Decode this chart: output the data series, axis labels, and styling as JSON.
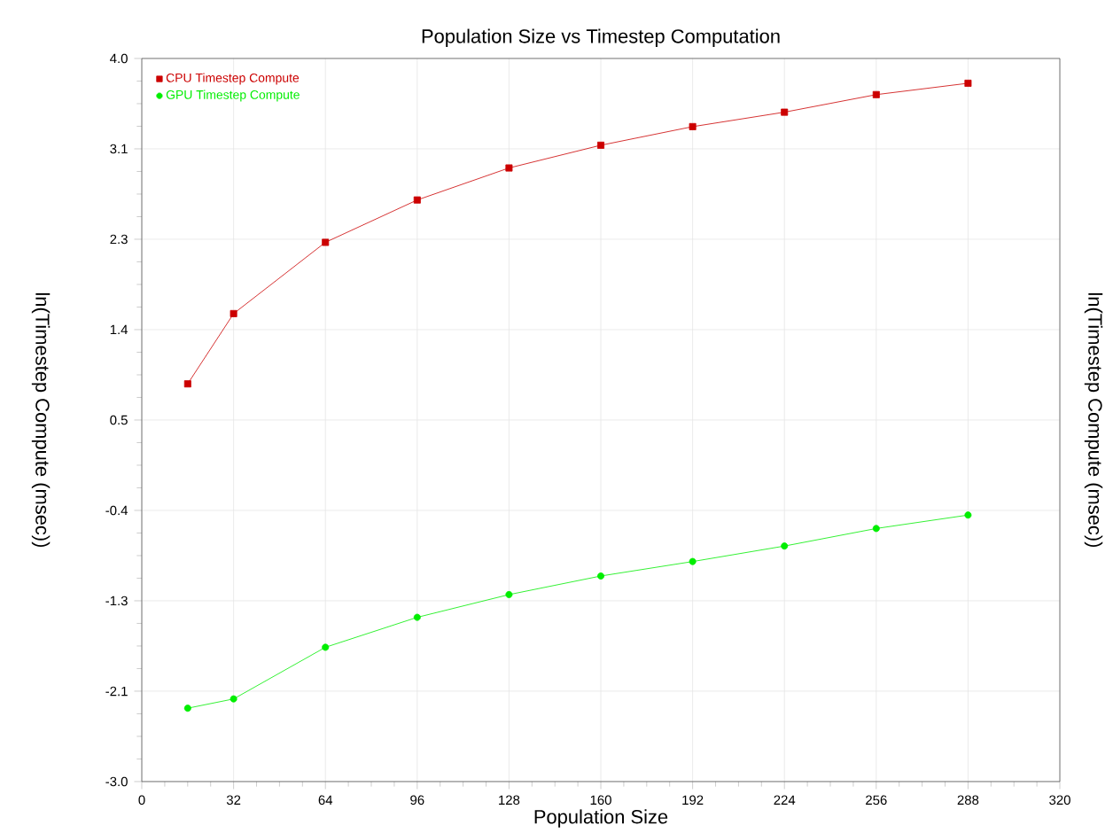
{
  "chart_data": {
    "type": "line",
    "title": "Population Size vs Timestep Computation",
    "xlabel": "Population Size",
    "ylabel": "ln(Timestep Compute (msec))",
    "y2label": "ln(Timestep Compute (msec))",
    "x": [
      16,
      32,
      64,
      96,
      128,
      160,
      192,
      224,
      256,
      288
    ],
    "series": [
      {
        "name": "CPU Timestep Compute",
        "color": "#cc0000",
        "marker": "square",
        "values": [
          0.85,
          1.53,
          2.22,
          2.63,
          2.94,
          3.16,
          3.34,
          3.48,
          3.65,
          3.76
        ]
      },
      {
        "name": "GPU Timestep Compute",
        "color": "#00ee00",
        "marker": "circle",
        "values": [
          -2.29,
          -2.2,
          -1.7,
          -1.41,
          -1.19,
          -1.01,
          -0.87,
          -0.72,
          -0.55,
          -0.42
        ]
      }
    ],
    "xlim": [
      0,
      320
    ],
    "xticks": [
      0,
      32,
      64,
      96,
      128,
      160,
      192,
      224,
      256,
      288,
      320
    ],
    "ylim": [
      -3.0,
      4.0
    ],
    "yticks": [
      {
        "value": -3.0,
        "label": "-3.0"
      },
      {
        "value": -2.125,
        "label": "-2.1"
      },
      {
        "value": -1.25,
        "label": "-1.3"
      },
      {
        "value": -0.375,
        "label": "-0.4"
      },
      {
        "value": 0.5,
        "label": "0.5"
      },
      {
        "value": 1.375,
        "label": "1.4"
      },
      {
        "value": 2.25,
        "label": "2.3"
      },
      {
        "value": 3.125,
        "label": "3.1"
      },
      {
        "value": 4.0,
        "label": "4.0"
      }
    ],
    "grid": true,
    "legend": "top left",
    "line_style": "solid"
  }
}
